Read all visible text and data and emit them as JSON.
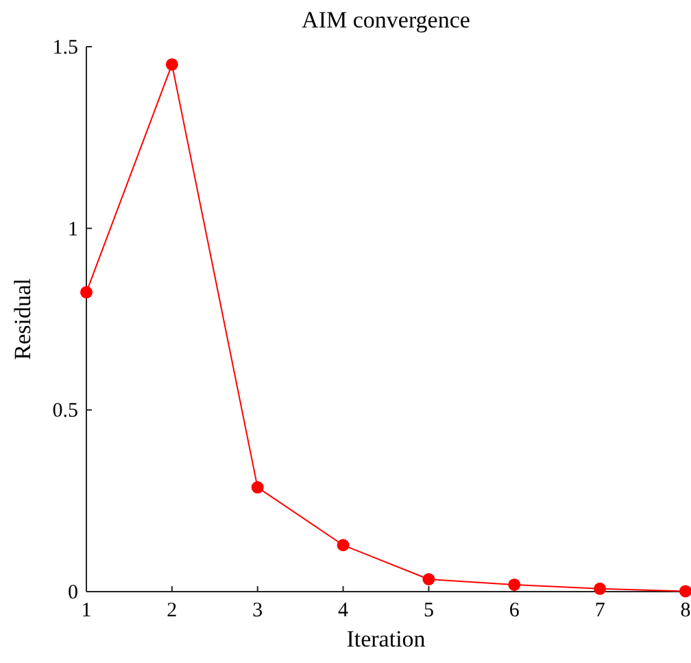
{
  "chart_data": {
    "type": "line",
    "title": "AIM convergence",
    "xlabel": "Iteration",
    "ylabel": "Residual",
    "x": [
      1,
      2,
      3,
      4,
      5,
      6,
      7,
      8
    ],
    "series": [
      {
        "color": "#ff0000",
        "values": [
          0.824,
          1.451,
          0.287,
          0.128,
          0.034,
          0.019,
          0.008,
          0.001
        ]
      }
    ],
    "xlim": [
      1,
      8
    ],
    "xticks": [
      1,
      2,
      3,
      4,
      5,
      6,
      7,
      8
    ],
    "ylim": [
      0,
      1.5
    ],
    "yticks": [
      0,
      0.5,
      1,
      1.5
    ],
    "marker": "circle",
    "line_style": "solid"
  }
}
